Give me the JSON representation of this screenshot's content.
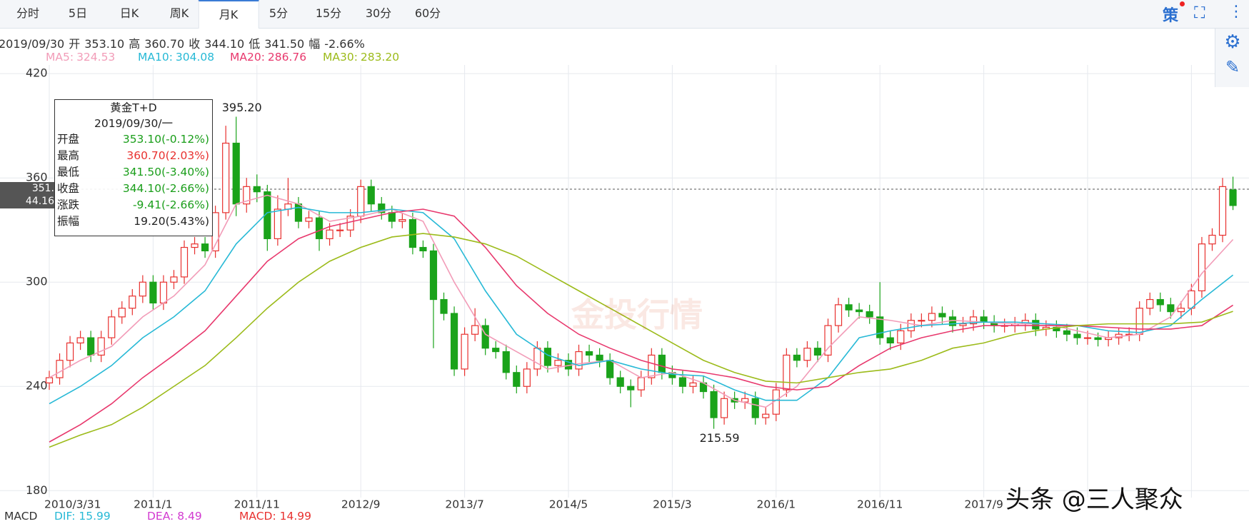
{
  "tabs": [
    {
      "label": "分时"
    },
    {
      "label": "5日"
    },
    {
      "label": "日K"
    },
    {
      "label": "周K"
    },
    {
      "label": "月K",
      "active": true
    },
    {
      "label": "5分"
    },
    {
      "label": "15分"
    },
    {
      "label": "30分"
    },
    {
      "label": "60分"
    }
  ],
  "toolbar": {
    "strategy": "策"
  },
  "header": {
    "date": "2019/09/30",
    "fields": [
      {
        "label": "开",
        "value": "353.10"
      },
      {
        "label": "高",
        "value": "360.70"
      },
      {
        "label": "收",
        "value": "344.10"
      },
      {
        "label": "低",
        "value": "341.50"
      },
      {
        "label": "幅",
        "value": "-2.66%"
      }
    ]
  },
  "crosshair": {
    "price": "351.",
    "change": "44.16"
  },
  "tooltip": {
    "title": "黄金T+D",
    "date": "2019/09/30/一",
    "rows": [
      {
        "label": "开盘",
        "value": "353.10(-0.12%)",
        "color": "#1a9e1a"
      },
      {
        "label": "最高",
        "value": "360.70(2.03%)",
        "color": "#e8312f"
      },
      {
        "label": "最低",
        "value": "341.50(-3.40%)",
        "color": "#1a9e1a"
      },
      {
        "label": "收盘",
        "value": "344.10(-2.66%)",
        "color": "#1a9e1a"
      },
      {
        "label": "涨跌",
        "value": "-9.41(-2.66%)",
        "color": "#1a9e1a"
      },
      {
        "label": "振幅",
        "value": "19.20(5.43%)",
        "color": "#222"
      }
    ]
  },
  "macd": {
    "title": "MACD",
    "items": [
      {
        "label": "DIF: 15.99",
        "color": "#27b9d6"
      },
      {
        "label": "DEA: 8.49",
        "color": "#d23ad0"
      },
      {
        "label": "MACD: 14.99",
        "color": "#e8312f"
      }
    ]
  },
  "watermarks": [
    "头条 @三人聚众",
    "金投行情"
  ],
  "chart_data": {
    "type": "candlestick",
    "up_color": "#e8312f",
    "down_color": "#1aa31a",
    "grid": true,
    "ylim": [
      176,
      425
    ],
    "yticks": [
      180,
      240,
      300,
      360,
      420
    ],
    "categories": [
      "2010/3/31",
      null,
      null,
      null,
      null,
      null,
      null,
      null,
      null,
      null,
      "2011/1",
      null,
      null,
      null,
      null,
      null,
      null,
      null,
      null,
      null,
      "2011/11",
      null,
      null,
      null,
      null,
      null,
      null,
      null,
      null,
      null,
      "2012/9",
      null,
      null,
      null,
      null,
      null,
      null,
      null,
      null,
      null,
      "2013/7",
      null,
      null,
      null,
      null,
      null,
      null,
      null,
      null,
      null,
      "2014/5",
      null,
      null,
      null,
      null,
      null,
      null,
      null,
      null,
      null,
      "2015/3",
      null,
      null,
      null,
      null,
      null,
      null,
      null,
      null,
      null,
      "2016/1",
      null,
      null,
      null,
      null,
      null,
      null,
      null,
      null,
      null,
      "2016/11",
      null,
      null,
      null,
      null,
      null,
      null,
      null,
      null,
      null,
      "2017/9",
      null,
      null,
      null,
      null,
      null,
      null,
      null,
      null,
      null,
      null,
      null,
      null,
      null,
      null,
      null,
      null,
      null,
      null,
      null,
      null,
      null,
      null,
      null
    ],
    "ohlc": [
      [
        242,
        249,
        238,
        245
      ],
      [
        245,
        259,
        241,
        255
      ],
      [
        255,
        269,
        251,
        265
      ],
      [
        265,
        272,
        261,
        268
      ],
      [
        268,
        272,
        254,
        258
      ],
      [
        258,
        272,
        254,
        268
      ],
      [
        268,
        284,
        264,
        280
      ],
      [
        280,
        289,
        276,
        285
      ],
      [
        285,
        296,
        281,
        292
      ],
      [
        292,
        304,
        288,
        300
      ],
      [
        300,
        304,
        284,
        288
      ],
      [
        288,
        304,
        284,
        300
      ],
      [
        300,
        307,
        296,
        303
      ],
      [
        303,
        324,
        299,
        320
      ],
      [
        320,
        326,
        316,
        322
      ],
      [
        322,
        326,
        314,
        318
      ],
      [
        318,
        344,
        314,
        340
      ],
      [
        340,
        390,
        336,
        380
      ],
      [
        380,
        395.2,
        338,
        345
      ],
      [
        345,
        360,
        340,
        355
      ],
      [
        355,
        362,
        346,
        352
      ],
      [
        352,
        356,
        318,
        325
      ],
      [
        325,
        350,
        321,
        342
      ],
      [
        342,
        360,
        338,
        345
      ],
      [
        345,
        349,
        331,
        335
      ],
      [
        335,
        341,
        331,
        337
      ],
      [
        337,
        341,
        318,
        325
      ],
      [
        325,
        334,
        321,
        330
      ],
      [
        330,
        334,
        326,
        330
      ],
      [
        330,
        342,
        326,
        338
      ],
      [
        338,
        359,
        334,
        355
      ],
      [
        355,
        359,
        341,
        345
      ],
      [
        345,
        349,
        336,
        340
      ],
      [
        340,
        344,
        331,
        335
      ],
      [
        335,
        340,
        331,
        336
      ],
      [
        336,
        340,
        316,
        320
      ],
      [
        320,
        324,
        314,
        318
      ],
      [
        318,
        322,
        262,
        290
      ],
      [
        290,
        294,
        278,
        282
      ],
      [
        282,
        286,
        246,
        250
      ],
      [
        250,
        274,
        246,
        270
      ],
      [
        270,
        285,
        266,
        275
      ],
      [
        275,
        279,
        258,
        262
      ],
      [
        262,
        266,
        256,
        260
      ],
      [
        260,
        264,
        244,
        248
      ],
      [
        248,
        252,
        236,
        240
      ],
      [
        240,
        254,
        236,
        250
      ],
      [
        250,
        266,
        246,
        262
      ],
      [
        262,
        266,
        248,
        252
      ],
      [
        252,
        259,
        248,
        255
      ],
      [
        255,
        259,
        246,
        250
      ],
      [
        250,
        264,
        246,
        260
      ],
      [
        260,
        264,
        254,
        258
      ],
      [
        258,
        262,
        251,
        255
      ],
      [
        255,
        259,
        241,
        245
      ],
      [
        245,
        249,
        236,
        240
      ],
      [
        240,
        244,
        228,
        238
      ],
      [
        238,
        249,
        234,
        245
      ],
      [
        245,
        262,
        241,
        258
      ],
      [
        258,
        262,
        244,
        248
      ],
      [
        248,
        252,
        241,
        245
      ],
      [
        245,
        249,
        236,
        240
      ],
      [
        240,
        246,
        236,
        242
      ],
      [
        242,
        246,
        233,
        237
      ],
      [
        237,
        241,
        215.59,
        222
      ],
      [
        222,
        237,
        218,
        233
      ],
      [
        233,
        237,
        227,
        231
      ],
      [
        231,
        237,
        227,
        233
      ],
      [
        233,
        237,
        218,
        222
      ],
      [
        222,
        228,
        218,
        224
      ],
      [
        224,
        242,
        220,
        238
      ],
      [
        238,
        262,
        234,
        258
      ],
      [
        258,
        262,
        251,
        255
      ],
      [
        255,
        266,
        251,
        262
      ],
      [
        262,
        266,
        254,
        258
      ],
      [
        258,
        279,
        254,
        275
      ],
      [
        275,
        291,
        271,
        287
      ],
      [
        287,
        291,
        280,
        284
      ],
      [
        284,
        288,
        279,
        283
      ],
      [
        283,
        287,
        276,
        280
      ],
      [
        280,
        300,
        264,
        268
      ],
      [
        268,
        272,
        261,
        265
      ],
      [
        265,
        276,
        261,
        272
      ],
      [
        272,
        282,
        268,
        278
      ],
      [
        278,
        282,
        274,
        278
      ],
      [
        278,
        286,
        274,
        282
      ],
      [
        282,
        286,
        276,
        280
      ],
      [
        280,
        284,
        271,
        275
      ],
      [
        275,
        280,
        271,
        276
      ],
      [
        276,
        284,
        272,
        280
      ],
      [
        280,
        284,
        273,
        277
      ],
      [
        277,
        281,
        271,
        275
      ],
      [
        275,
        279,
        271,
        275
      ],
      [
        275,
        280,
        271,
        276
      ],
      [
        276,
        282,
        272,
        278
      ],
      [
        278,
        282,
        269,
        273
      ],
      [
        273,
        278,
        269,
        274
      ],
      [
        274,
        278,
        268,
        272
      ],
      [
        272,
        276,
        266,
        270
      ],
      [
        270,
        274,
        264,
        268
      ],
      [
        268,
        272,
        264,
        268
      ],
      [
        268,
        271,
        263,
        267
      ],
      [
        267,
        272,
        263,
        268
      ],
      [
        268,
        274,
        264,
        270
      ],
      [
        270,
        274,
        266,
        270
      ],
      [
        270,
        289,
        266,
        285
      ],
      [
        285,
        294,
        281,
        290
      ],
      [
        290,
        294,
        283,
        287
      ],
      [
        287,
        291,
        279,
        283
      ],
      [
        283,
        289,
        279,
        285
      ],
      [
        285,
        299,
        281,
        295
      ],
      [
        295,
        326,
        291,
        322
      ],
      [
        322,
        331,
        318,
        327
      ],
      [
        327,
        360,
        323,
        355
      ],
      [
        353.1,
        360.7,
        341.5,
        344.1
      ]
    ],
    "annotations": [
      {
        "text": "395.20",
        "at": "high"
      },
      {
        "text": "215.59",
        "at": "low"
      }
    ],
    "x": [
      0,
      3,
      6,
      9,
      12,
      15,
      18,
      21,
      24,
      27,
      30,
      33,
      36,
      39,
      42,
      45,
      48,
      51,
      54,
      57,
      60,
      63,
      66,
      69,
      72,
      75,
      78,
      81,
      84,
      87,
      90,
      93,
      96,
      99,
      102,
      105,
      108,
      111,
      114
    ],
    "series": [
      {
        "name": "MA5:",
        "last_label": "324.53",
        "color": "#f29cb8",
        "values": [
          245,
          255,
          263,
          280,
          292,
          310,
          345,
          350,
          345,
          335,
          338,
          342,
          335,
          300,
          270,
          260,
          250,
          253,
          255,
          245,
          248,
          242,
          232,
          228,
          240,
          262,
          280,
          278,
          275,
          278,
          277,
          276,
          276,
          272,
          268,
          270,
          280,
          305,
          324.53
        ]
      },
      {
        "name": "MA10:",
        "last_label": "304.08",
        "color": "#27b9d6",
        "values": [
          230,
          240,
          252,
          268,
          280,
          295,
          322,
          340,
          343,
          340,
          340,
          342,
          340,
          325,
          295,
          270,
          258,
          252,
          255,
          250,
          247,
          246,
          238,
          232,
          232,
          245,
          268,
          272,
          275,
          276,
          277,
          277,
          276,
          275,
          272,
          271,
          275,
          290,
          304.08
        ]
      },
      {
        "name": "MA20:",
        "last_label": "286.76",
        "color": "#e8386d",
        "values": [
          208,
          218,
          230,
          245,
          258,
          272,
          292,
          312,
          325,
          332,
          336,
          340,
          342,
          338,
          320,
          298,
          282,
          270,
          262,
          255,
          250,
          248,
          245,
          240,
          238,
          240,
          252,
          262,
          268,
          272,
          275,
          275,
          275,
          275,
          274,
          273,
          273,
          275,
          286.76
        ]
      },
      {
        "name": "MA30:",
        "last_label": "283.20",
        "color": "#9cbb1a",
        "values": [
          205,
          212,
          218,
          228,
          240,
          252,
          268,
          285,
          300,
          312,
          320,
          326,
          328,
          326,
          322,
          315,
          305,
          295,
          285,
          275,
          265,
          255,
          248,
          243,
          242,
          245,
          248,
          250,
          255,
          262,
          265,
          270,
          273,
          275,
          276,
          276,
          276,
          277,
          283.2
        ]
      }
    ]
  }
}
